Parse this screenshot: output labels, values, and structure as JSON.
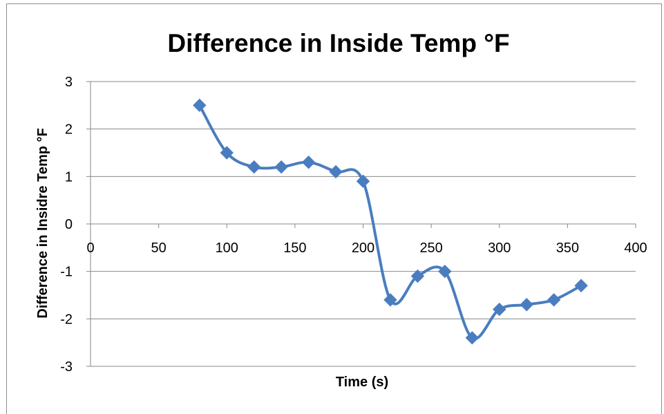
{
  "chart_data": {
    "type": "scatter",
    "title": "Difference in Inside Temp °F",
    "xlabel": "Time (s)",
    "ylabel": "Difference in Insidre  Temp °F",
    "xlim": [
      0,
      400
    ],
    "ylim": [
      -3,
      3
    ],
    "x_ticks": [
      "0",
      "50",
      "100",
      "150",
      "200",
      "250",
      "300",
      "350",
      "400"
    ],
    "y_ticks": [
      "3",
      "2",
      "1",
      "0",
      "-1",
      "-2",
      "-3"
    ],
    "grid": "horizontal",
    "legend": "none",
    "line_style": "smoothed",
    "marker": "diamond",
    "color": "#4a7dbf",
    "series": [
      {
        "x": [
          80,
          100,
          120,
          140,
          160,
          180,
          200,
          220,
          240,
          260,
          280,
          300,
          320,
          340,
          360
        ],
        "y": [
          2.5,
          1.5,
          1.2,
          1.2,
          1.3,
          1.1,
          0.9,
          -1.6,
          -1.1,
          -1.0,
          -2.4,
          -1.8,
          -1.7,
          -1.6,
          -1.3
        ]
      }
    ]
  }
}
